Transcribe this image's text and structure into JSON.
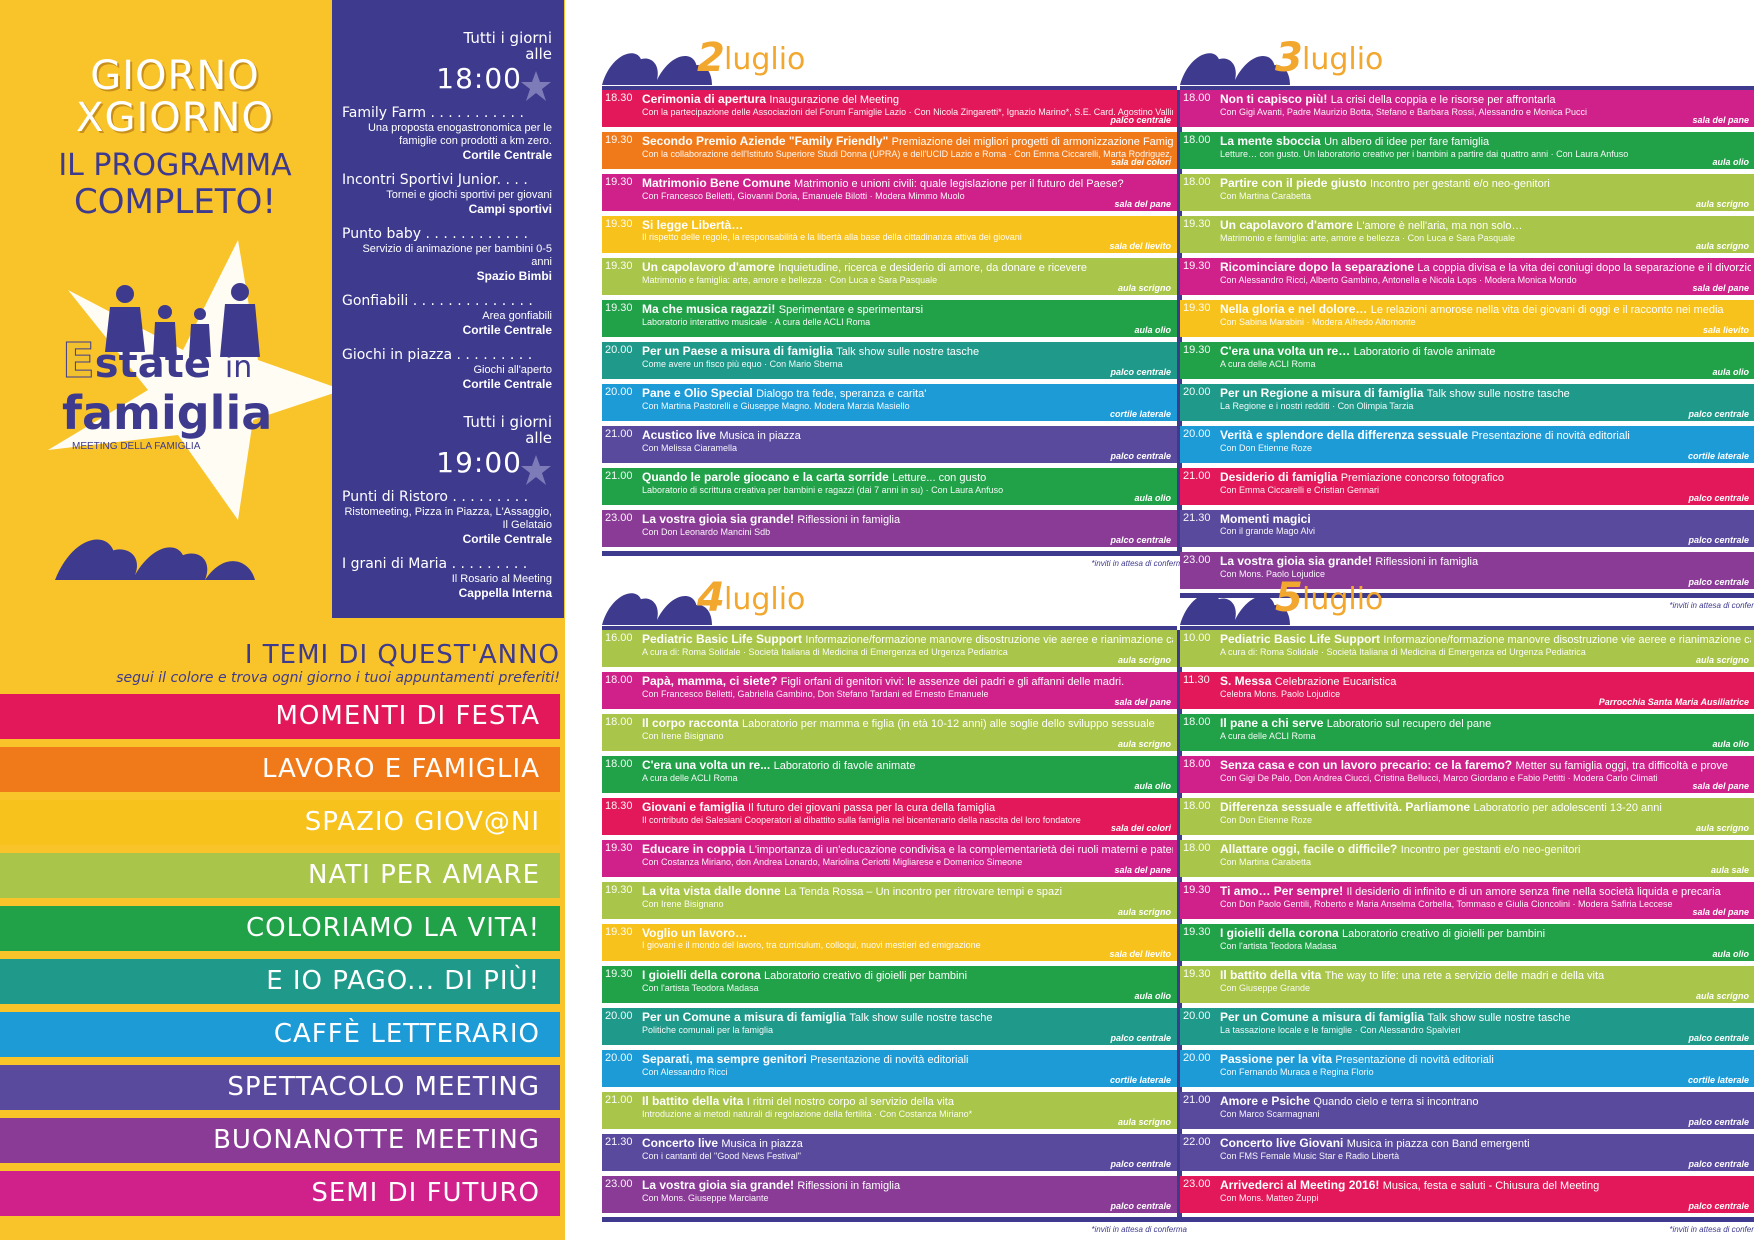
{
  "headline": {
    "line1": "GIORNO",
    "line2": "XGIORNO",
    "line3": "IL PROGRAMMA",
    "line4": "COMPLETO!"
  },
  "brand": {
    "e": "E",
    "state": "state",
    "in": "in",
    "famiglia": "famiglia",
    "sub": "MEETING DELLA FAMIGLIA"
  },
  "schedule": [
    {
      "pre1": "Tutti i giorni",
      "pre2": "alle",
      "time": "18:00",
      "activities": [
        {
          "name": "Family Farm . . . . . . . . . . .",
          "desc": "Una proposta enogastronomica per le famiglie con prodotti a km zero.",
          "place": "Cortile Centrale"
        },
        {
          "name": "Incontri Sportivi Junior. . . .",
          "desc": "Tornei e giochi sportivi per giovani",
          "place": "Campi sportivi"
        },
        {
          "name": "Punto baby . . . . . . . . . . . .",
          "desc": "Servizio di animazione per bambini 0-5 anni",
          "place": "Spazio Bimbi"
        },
        {
          "name": "Gonfiabili . . . . . . . . . . . . . .",
          "desc": "Area gonfiabili",
          "place": "Cortile Centrale"
        },
        {
          "name": "Giochi in piazza . . . . . . . . .",
          "desc": "Giochi all'aperto",
          "place": "Cortile Centrale"
        }
      ]
    },
    {
      "pre1": "Tutti i giorni",
      "pre2": "alle",
      "time": "19:00",
      "activities": [
        {
          "name": "Punti di Ristoro . . . . . . . . .",
          "desc": "Ristomeeting, Pizza in Piazza, L'Assaggio, Il Gelataio",
          "place": "Cortile Centrale"
        },
        {
          "name": "I grani di Maria . . . . . . . . .",
          "desc": "Il Rosario al Meeting",
          "place": "Cappella Interna"
        }
      ]
    }
  ],
  "themes_title": {
    "main": "I TEMI DI QUEST'ANNO",
    "sub": "segui il colore e trova ogni giorno i tuoi appuntamenti preferiti!"
  },
  "themes": [
    {
      "label": "MOMENTI DI FESTA",
      "color": "#e2185a"
    },
    {
      "label": "LAVORO E FAMIGLIA",
      "color": "#f07a1a"
    },
    {
      "label": "SPAZIO GIOV@NI",
      "color": "#f7c21b"
    },
    {
      "label": "NATI PER AMARE",
      "color": "#a9c54a"
    },
    {
      "label": "COLORIAMO LA VITA!",
      "color": "#21a148"
    },
    {
      "label": "E IO PAGO... DI PIÙ!",
      "color": "#1f9a8a"
    },
    {
      "label": "CAFFÈ LETTERARIO",
      "color": "#1c9bd7"
    },
    {
      "label": "SPETTACOLO MEETING",
      "color": "#5a4a9e"
    },
    {
      "label": "BUONANOTTE MEETING",
      "color": "#8a3b96"
    },
    {
      "label": "SEMI DI FUTURO",
      "color": "#d0208a"
    }
  ],
  "days": [
    {
      "num": "2",
      "month": "luglio",
      "note": "*inviti in attesa di conferma",
      "events": [
        {
          "t": "18.30",
          "title": "Cerimonia di apertura",
          "extra": "Inaugurazione del Meeting",
          "sub": "Con la partecipazione delle Associazioni del Forum Famiglie Lazio · Con Nicola Zingaretti*, Ignazio Marino*, S.E. Card. Agostino Vallini*, Francesco Belletti, Emma Ciccarelli",
          "room": "palco centrale",
          "color": "#e2185a"
        },
        {
          "t": "19.30",
          "title": "Secondo Premio Aziende \"Family Friendly\"",
          "extra": "Premiazione dei migliori progetti di armonizzazione Famiglia-Lavoro",
          "sub": "Con la collaborazione dell'Istituto Superiore Studi Donna (UPRA) e dell'UCID Lazio e Roma · Con Emma Ciccarelli, Marta Rodriguez, Domenico Mastrolitto, Lidia Borzì",
          "room": "sala dei colori",
          "color": "#f07a1a"
        },
        {
          "t": "19.30",
          "title": "Matrimonio Bene Comune",
          "extra": "Matrimonio e unioni civili: quale legislazione per il futuro del Paese?",
          "sub": "Con Francesco Belletti, Giovanni Doria, Emanuele Bilotti · Modera Mimmo Muolo",
          "room": "sala del pane",
          "color": "#d0208a"
        },
        {
          "t": "19.30",
          "title": "Si legge Libertà…",
          "extra": "",
          "sub": "Il rispetto delle regole, la responsabilità e la libertà alla base della cittadinanza attiva dei giovani",
          "room": "sala del lievito",
          "color": "#f7c21b"
        },
        {
          "t": "19.30",
          "title": "Un capolavoro d'amore",
          "extra": "Inquietudine, ricerca e desiderio di amore, da donare e ricevere",
          "sub": "Matrimonio e famiglia: arte, amore e bellezza · Con Luca e Sara Pasquale",
          "room": "aula scrigno",
          "color": "#a9c54a"
        },
        {
          "t": "19.30",
          "title": "Ma che musica ragazzi!",
          "extra": "Sperimentare e sperimentarsi",
          "sub": "Laboratorio interattivo musicale · A cura delle ACLI Roma",
          "room": "aula olio",
          "color": "#21a148"
        },
        {
          "t": "20.00",
          "title": "Per un Paese a misura di famiglia",
          "extra": "Talk show sulle nostre tasche",
          "sub": "Come avere un fisco più equo · Con Mario Sberna",
          "room": "palco centrale",
          "color": "#1f9a8a"
        },
        {
          "t": "20.00",
          "title": "Pane e Olio Special",
          "extra": "Dialogo tra fede, speranza e carita'",
          "sub": "Con Martina Pastorelli e Giuseppe Magno. Modera Marzia Masiello",
          "room": "cortile laterale",
          "color": "#1c9bd7"
        },
        {
          "t": "21.00",
          "title": "Acustico live",
          "extra": "Musica in piazza",
          "sub": "Con Melissa Ciaramella",
          "room": "palco centrale",
          "color": "#5a4a9e"
        },
        {
          "t": "21.00",
          "title": "Quando le parole giocano e la carta sorride",
          "extra": "Letture... con gusto",
          "sub": "Laboratorio di scrittura creativa per bambini e ragazzi (dai 7 anni in su) · Con Laura Anfuso",
          "room": "aula olio",
          "color": "#21a148"
        },
        {
          "t": "23.00",
          "title": "La vostra gioia sia grande!",
          "extra": "Riflessioni in famiglia",
          "sub": "Con Don Leonardo Mancini Sdb",
          "room": "palco centrale",
          "color": "#8a3b96"
        }
      ]
    },
    {
      "num": "3",
      "month": "luglio",
      "note": "*inviti in attesa di conferma",
      "events": [
        {
          "t": "18.00",
          "title": "Non ti capisco più!",
          "extra": "La crisi della coppia e le risorse per affrontarla",
          "sub": "Con Gigi Avanti, Padre Maurizio Botta, Stefano e Barbara Rossi, Alessandro e Monica Pucci",
          "room": "sala del pane",
          "color": "#d0208a"
        },
        {
          "t": "18.00",
          "title": "La mente sboccia",
          "extra": "Un albero di idee per fare famiglia",
          "sub": "Letture… con gusto. Un laboratorio creativo per i bambini a partire dai quattro anni · Con Laura Anfuso",
          "room": "aula olio",
          "color": "#21a148"
        },
        {
          "t": "18.00",
          "title": "Partire con il piede giusto",
          "extra": "Incontro per gestanti e/o neo-genitori",
          "sub": "Con Martina Carabetta",
          "room": "aula scrigno",
          "color": "#a9c54a"
        },
        {
          "t": "19.30",
          "title": "Un capolavoro d'amore",
          "extra": "L'amore è nell'aria, ma non solo…",
          "sub": "Matrimonio e famiglia: arte, amore e bellezza · Con Luca e Sara Pasquale",
          "room": "aula scrigno",
          "color": "#a9c54a"
        },
        {
          "t": "19.30",
          "title": "Ricominciare dopo la separazione",
          "extra": "La coppia divisa e la vita dei coniugi dopo la separazione e il divorzio",
          "sub": "Con Alessandro Ricci, Alberto Gambino, Antonella e Nicola Lops · Modera Monica Mondo",
          "room": "sala del pane",
          "color": "#d0208a"
        },
        {
          "t": "19.30",
          "title": "Nella gloria e nel dolore…",
          "extra": "Le relazioni amorose nella vita dei giovani di oggi e il racconto nei media",
          "sub": "Con Sabina Marabini · Modera Alfredo Altomonte",
          "room": "sala lievito",
          "color": "#f7c21b"
        },
        {
          "t": "19.30",
          "title": "C'era una volta un re…",
          "extra": "Laboratorio di favole animate",
          "sub": "A cura delle ACLI Roma",
          "room": "aula olio",
          "color": "#21a148"
        },
        {
          "t": "20.00",
          "title": "Per un Regione a misura di famiglia",
          "extra": "Talk show sulle nostre tasche",
          "sub": "La Regione e i nostri redditi · Con Olimpia Tarzia",
          "room": "palco centrale",
          "color": "#1f9a8a"
        },
        {
          "t": "20.00",
          "title": "Verità e splendore della differenza sessuale",
          "extra": "Presentazione di novità editoriali",
          "sub": "Con Don Etienne Roze",
          "room": "cortile laterale",
          "color": "#1c9bd7"
        },
        {
          "t": "21.00",
          "title": "Desiderio di famiglia",
          "extra": "Premiazione concorso fotografico",
          "sub": "Con Emma Ciccarelli e Cristian Gennari",
          "room": "palco centrale",
          "color": "#e2185a"
        },
        {
          "t": "21.30",
          "title": "Momenti magici",
          "extra": "",
          "sub": "Con il grande Mago Alvi",
          "room": "palco centrale",
          "color": "#5a4a9e"
        },
        {
          "t": "23.00",
          "title": "La vostra gioia sia grande!",
          "extra": "Riflessioni in famiglia",
          "sub": "Con Mons. Paolo Lojudice",
          "room": "palco centrale",
          "color": "#8a3b96"
        }
      ]
    },
    {
      "num": "4",
      "month": "luglio",
      "note": "*inviti in attesa di conferma",
      "events": [
        {
          "t": "16.00",
          "title": "Pediatric Basic Life Support",
          "extra": "Informazione/formazione manovre disostruzione vie aeree e rianimazione cardiopolmonare infantile",
          "sub": "A cura di: Roma Solidale · Società Italiana di Medicina di Emergenza ed Urgenza Pediatrica",
          "room": "aula scrigno",
          "color": "#a9c54a"
        },
        {
          "t": "18.00",
          "title": "Papà, mamma, ci siete?",
          "extra": "Figli orfani di genitori vivi: le assenze dei padri e gli affanni delle madri.",
          "sub": "Con Francesco Belletti, Gabriella Gambino, Don Stefano Tardani ed Ernesto Emanuele",
          "room": "sala del pane",
          "color": "#d0208a"
        },
        {
          "t": "18.00",
          "title": "Il corpo racconta",
          "extra": "Laboratorio per mamma e figlia (in età 10-12 anni) alle soglie dello sviluppo sessuale",
          "sub": "Con Irene Bisignano",
          "room": "aula scrigno",
          "color": "#a9c54a"
        },
        {
          "t": "18.00",
          "title": "C'era una volta un re...",
          "extra": "Laboratorio di favole animate",
          "sub": "A cura delle ACLI Roma",
          "room": "aula olio",
          "color": "#21a148"
        },
        {
          "t": "18.30",
          "title": "Giovani e famiglia",
          "extra": "Il futuro dei giovani passa per la cura della famiglia",
          "sub": "Il contributo dei Salesiani Cooperatori al dibattito sulla famiglia nel bicentenario della nascita del loro fondatore",
          "room": "sala dei colori",
          "color": "#e2185a"
        },
        {
          "t": "19.30",
          "title": "Educare in coppia",
          "extra": "L'importanza di un'educazione condivisa e la complementarietà dei ruoli materni e paterni",
          "sub": "Con Costanza Miriano, don Andrea Lonardo, Mariolina Ceriotti Migliarese e Domenico Simeone",
          "room": "sala del pane",
          "color": "#d0208a"
        },
        {
          "t": "19.30",
          "title": "La vita vista dalle donne",
          "extra": "La Tenda Rossa – Un incontro per ritrovare tempi e spazi",
          "sub": "Con Irene Bisignano",
          "room": "aula scrigno",
          "color": "#a9c54a"
        },
        {
          "t": "19.30",
          "title": "Voglio un lavoro…",
          "extra": "",
          "sub": "I giovani e il mondo del lavoro, tra curriculum, colloqui, nuovi mestieri ed emigrazione",
          "room": "sala del lievito",
          "color": "#f7c21b"
        },
        {
          "t": "19.30",
          "title": "I gioielli della corona",
          "extra": "Laboratorio creativo di gioielli per bambini",
          "sub": "Con l'artista Teodora Madasa",
          "room": "aula olio",
          "color": "#21a148"
        },
        {
          "t": "20.00",
          "title": "Per un Comune a misura di famiglia",
          "extra": "Talk show sulle nostre tasche",
          "sub": "Politiche comunali per la famiglia",
          "room": "palco centrale",
          "color": "#1f9a8a"
        },
        {
          "t": "20.00",
          "title": "Separati, ma sempre genitori",
          "extra": "Presentazione di novità editoriali",
          "sub": "Con Alessandro Ricci",
          "room": "cortile laterale",
          "color": "#1c9bd7"
        },
        {
          "t": "21.00",
          "title": "Il battito della vita",
          "extra": "I ritmi del nostro corpo al servizio della vita",
          "sub": "Introduzione ai metodi naturali di regolazione della fertilità · Con Costanza Miriano*",
          "room": "aula scrigno",
          "color": "#a9c54a"
        },
        {
          "t": "21.30",
          "title": "Concerto live",
          "extra": "Musica in piazza",
          "sub": "Con i cantanti del \"Good News Festival\"",
          "room": "palco centrale",
          "color": "#5a4a9e"
        },
        {
          "t": "23.00",
          "title": "La vostra gioia sia grande!",
          "extra": "Riflessioni in famiglia",
          "sub": "Con Mons. Giuseppe Marciante",
          "room": "palco centrale",
          "color": "#8a3b96"
        }
      ]
    },
    {
      "num": "5",
      "month": "luglio",
      "note": "*inviti in attesa di conferma",
      "events": [
        {
          "t": "10.00",
          "title": "Pediatric Basic Life Support",
          "extra": "Informazione/formazione manovre disostruzione vie aeree e rianimazione cardiopolmonare infantile",
          "sub": "A cura di: Roma Solidale · Società Italiana di Medicina di Emergenza ed Urgenza Pediatrica",
          "room": "aula scrigno",
          "color": "#a9c54a"
        },
        {
          "t": "11.30",
          "title": "S. Messa",
          "extra": "Celebrazione Eucaristica",
          "sub": "Celebra Mons. Paolo Lojudice",
          "room": "Parrocchia Santa Maria Ausiliatrice",
          "color": "#e2185a"
        },
        {
          "t": "18.00",
          "title": "Il pane a chi serve",
          "extra": "Laboratorio sul recupero del pane",
          "sub": "A cura delle ACLI Roma",
          "room": "aula olio",
          "color": "#21a148"
        },
        {
          "t": "18.00",
          "title": "Senza casa e con un lavoro precario: ce la faremo?",
          "extra": "Metter su famiglia oggi, tra difficoltà e prove",
          "sub": "Con Gigi De Palo, Don Andrea Ciucci, Cristina Bellucci, Marco Giordano e Fabio Petitti · Modera Carlo Climati",
          "room": "sala del pane",
          "color": "#d0208a"
        },
        {
          "t": "18.00",
          "title": "Differenza sessuale e affettività. Parliamone",
          "extra": "Laboratorio per adolescenti 13-20 anni",
          "sub": "Con Don Etienne Roze",
          "room": "aula scrigno",
          "color": "#a9c54a"
        },
        {
          "t": "18.00",
          "title": "Allattare oggi, facile o difficile?",
          "extra": "Incontro per gestanti e/o neo-genitori",
          "sub": "Con Martina Carabetta",
          "room": "aula sale",
          "color": "#a9c54a"
        },
        {
          "t": "19.30",
          "title": "Ti amo… Per sempre!",
          "extra": "Il desiderio di infinito e di un amore senza fine nella società liquida e precaria",
          "sub": "Con Don Paolo Gentili, Roberto e Maria Anselma Corbella, Tommaso e Giulia Cioncolini · Modera Safiria Leccese",
          "room": "sala del pane",
          "color": "#d0208a"
        },
        {
          "t": "19.30",
          "title": "I gioielli della corona",
          "extra": "Laboratorio creativo di gioielli per bambini",
          "sub": "Con l'artista Teodora Madasa",
          "room": "aula olio",
          "color": "#21a148"
        },
        {
          "t": "19.30",
          "title": "Il battito della vita",
          "extra": "The way to life: una rete a servizio delle madri e della vita",
          "sub": "Con Giuseppe Grande",
          "room": "aula scrigno",
          "color": "#a9c54a"
        },
        {
          "t": "20.00",
          "title": "Per un Comune a misura di famiglia",
          "extra": "Talk show sulle nostre tasche",
          "sub": "La tassazione locale e le famiglie · Con Alessandro Spalvieri",
          "room": "palco centrale",
          "color": "#1f9a8a"
        },
        {
          "t": "20.00",
          "title": "Passione per la vita",
          "extra": "Presentazione di novità editoriali",
          "sub": "Con Fernando Muraca e Regina Florio",
          "room": "cortile laterale",
          "color": "#1c9bd7"
        },
        {
          "t": "21.00",
          "title": "Amore e Psiche",
          "extra": "Quando cielo e terra si incontrano",
          "sub": "Con Marco Scarmagnani",
          "room": "palco centrale",
          "color": "#5a4a9e"
        },
        {
          "t": "22.00",
          "title": "Concerto live Giovani",
          "extra": "Musica in piazza con Band emergenti",
          "sub": "Con FMS Female Music Star e Radio Libertà",
          "room": "palco centrale",
          "color": "#5a4a9e"
        },
        {
          "t": "23.00",
          "title": "Arrivederci al Meeting 2016!",
          "extra": "Musica, festa e saluti - Chiusura del Meeting",
          "sub": "Con Mons. Matteo Zuppi",
          "room": "palco centrale",
          "color": "#e2185a"
        }
      ]
    }
  ]
}
